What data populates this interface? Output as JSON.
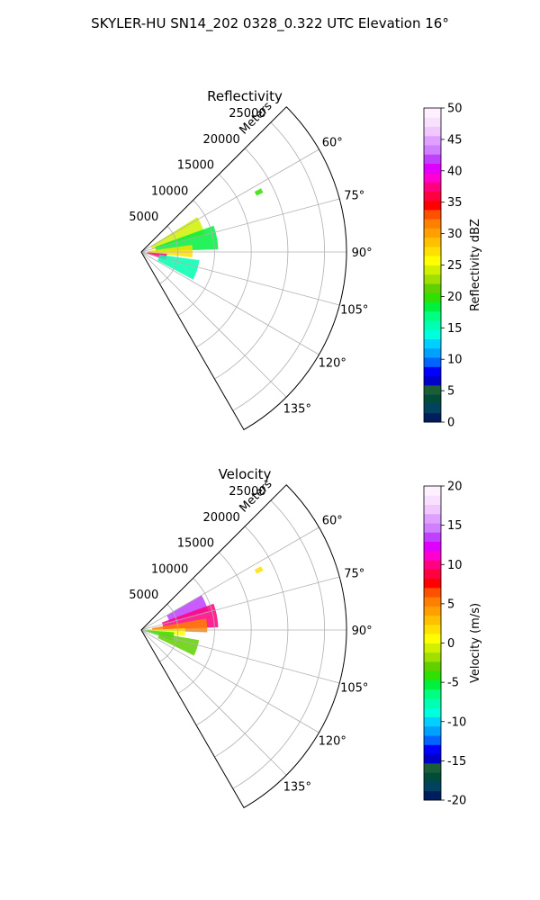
{
  "figure": {
    "title": "SKYLER-HU  SN14_202  0328_0.322 UTC Elevation 16°"
  },
  "chart_data": [
    {
      "type": "heatmap",
      "title": "Reflectivity",
      "radial_label": "Meters",
      "theta_range_deg": [
        45,
        150
      ],
      "r_max": 28000,
      "r_ticks": [
        5000,
        10000,
        15000,
        20000,
        25000
      ],
      "theta_ticks": [
        60,
        75,
        90,
        105,
        120,
        135
      ],
      "grid": true,
      "colorbar": {
        "label": "Reflectivity dBZ",
        "min": 0,
        "max": 50,
        "ticks": [
          0,
          5,
          10,
          15,
          20,
          25,
          30,
          35,
          40,
          45,
          50
        ],
        "colors": [
          "#001e5e",
          "#00425f",
          "#004b3a",
          "#1a5e37",
          "#0000c8",
          "#0000ff",
          "#0064ff",
          "#00a0ff",
          "#00d0ff",
          "#00ffdc",
          "#00ffb0",
          "#00ff80",
          "#00f040",
          "#30e000",
          "#60d000",
          "#a0e000",
          "#d0f000",
          "#ffff00",
          "#ffe000",
          "#ffc000",
          "#ffa000",
          "#ff8000",
          "#ff5000",
          "#ff0000",
          "#ff0040",
          "#ff0080",
          "#ff00d0",
          "#e000ff",
          "#c040ff",
          "#d080ff",
          "#e0a0ff",
          "#f0c8ff",
          "#f8e0ff",
          "#fff0ff"
        ]
      },
      "echo_regions": [
        {
          "theta": [
            58,
            76
          ],
          "r": [
            1500,
            9000
          ],
          "value": 24
        },
        {
          "theta": [
            70,
            88
          ],
          "r": [
            2000,
            10500
          ],
          "value": 18
        },
        {
          "theta": [
            82,
            96
          ],
          "r": [
            1000,
            7000
          ],
          "value": 27
        },
        {
          "theta": [
            94,
            108
          ],
          "r": [
            800,
            3500
          ],
          "value": 37
        },
        {
          "theta": [
            98,
            118
          ],
          "r": [
            2500,
            8000
          ],
          "value": 16
        },
        {
          "theta": [
            62,
            64
          ],
          "r": [
            17500,
            18500
          ],
          "value": 20
        }
      ]
    },
    {
      "type": "heatmap",
      "title": "Velocity",
      "radial_label": "Meters",
      "theta_range_deg": [
        45,
        150
      ],
      "r_max": 28000,
      "r_ticks": [
        5000,
        10000,
        15000,
        20000,
        25000
      ],
      "theta_ticks": [
        60,
        75,
        90,
        105,
        120,
        135
      ],
      "grid": true,
      "colorbar": {
        "label": "Velocity (m/s)",
        "min": -20,
        "max": 20,
        "ticks": [
          -20,
          -15,
          -10,
          -5,
          0,
          5,
          10,
          15,
          20
        ],
        "colors": [
          "#001e5e",
          "#00425f",
          "#004b3a",
          "#1a5e37",
          "#0000c8",
          "#0000ff",
          "#0064ff",
          "#00a0ff",
          "#00d0ff",
          "#00ffdc",
          "#00ffb0",
          "#00ff80",
          "#00f040",
          "#30e000",
          "#60d000",
          "#a0e000",
          "#d0f000",
          "#ffff00",
          "#ffe000",
          "#ffc000",
          "#ffa000",
          "#ff8000",
          "#ff5000",
          "#ff0000",
          "#ff0040",
          "#ff0080",
          "#ff00d0",
          "#e000ff",
          "#c040ff",
          "#d080ff",
          "#e0a0ff",
          "#f0c8ff",
          "#f8e0ff",
          "#fff0ff"
        ]
      },
      "echo_regions": [
        {
          "theta": [
            60,
            74
          ],
          "r": [
            4000,
            9500
          ],
          "value": 14
        },
        {
          "theta": [
            70,
            88
          ],
          "r": [
            3000,
            10500
          ],
          "value": 10
        },
        {
          "theta": [
            80,
            92
          ],
          "r": [
            1500,
            9000
          ],
          "value": 5
        },
        {
          "theta": [
            88,
            98
          ],
          "r": [
            800,
            6000
          ],
          "value": 1
        },
        {
          "theta": [
            94,
            108
          ],
          "r": [
            500,
            4500
          ],
          "value": -4
        },
        {
          "theta": [
            100,
            116
          ],
          "r": [
            2500,
            8000
          ],
          "value": -3
        },
        {
          "theta": [
            62,
            64
          ],
          "r": [
            17500,
            18500
          ],
          "value": 2
        }
      ]
    }
  ]
}
